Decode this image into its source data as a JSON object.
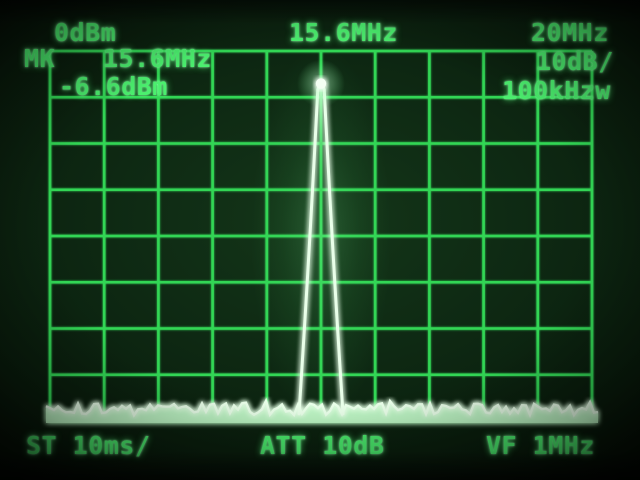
{
  "readouts": {
    "ref_level": "0dBm",
    "center_freq": "15.6MHz",
    "span": "20MHz",
    "marker_label": "MK",
    "marker_freq": "15.6MHz",
    "marker_level": "-6.6dBm",
    "scale": "10dB/",
    "bandwidth": "100kHzw",
    "sweep": "ST 10ms/",
    "attenuation": "ATT 10dB",
    "video_filter": "VF 1MHz"
  },
  "colors": {
    "phosphor_grid": "#30d654",
    "phosphor_text": "#4bef6e",
    "trace_core": "#e9ffe9",
    "noise_fill": "#bdf5c3",
    "marker_dot": "#f4fff3",
    "background": "#0e2913"
  },
  "chart_data": {
    "type": "line",
    "title": "Spectrum analyzer trace: single carrier peak with marker",
    "x_axis": {
      "center_mhz": 15.6,
      "span_mhz": 20,
      "mhz_per_div": 2,
      "divisions": 10,
      "label_center": "15.6MHz",
      "label_span": "20MHz"
    },
    "y_axis": {
      "ref_level_dbm": 0,
      "db_per_div": 10,
      "divisions": 8,
      "range_dbm": [
        -80,
        0
      ],
      "label_ref": "0dBm"
    },
    "peak": {
      "freq_mhz": 15.6,
      "level_dbm": -6.6
    },
    "marker": {
      "label": "MK",
      "freq_mhz": 15.6,
      "level_dbm": -6.6
    },
    "noise_floor_dbm": -78,
    "settings": {
      "scale": "10dB/",
      "resolution_bw": "100kHz",
      "video_filter": "1MHz",
      "sweep_time": "10ms/",
      "attenuation": "10dB"
    },
    "grid": true,
    "legend": false,
    "noise_seed": 20
  }
}
